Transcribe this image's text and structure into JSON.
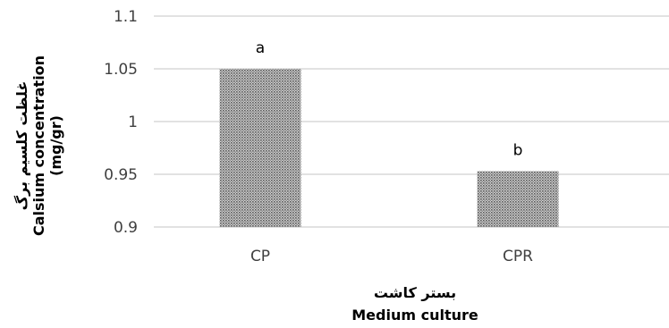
{
  "chart_data": {
    "type": "bar",
    "categories": [
      "CP",
      "CPR"
    ],
    "values": [
      1.05,
      0.953
    ],
    "data_labels": [
      "a",
      "b"
    ],
    "ylim": [
      0.9,
      1.1
    ],
    "yticks": [
      "1.1",
      "1.05",
      "1",
      "0.95",
      "0.9"
    ],
    "ylabel_lines": [
      "غلظت کلسیم برگ",
      "Calsium concentration",
      "(mg/gr)"
    ],
    "xlabel_lines": [
      "بستر کاشت",
      "Medium culture"
    ],
    "grid": true,
    "legend": "none",
    "bar_fill": "stippled gray pattern",
    "colors": {
      "bar_dot": "#555555",
      "bar_bg": "#d9d9d9",
      "grid": "#d9d9d9",
      "tick_text": "#404040"
    }
  }
}
